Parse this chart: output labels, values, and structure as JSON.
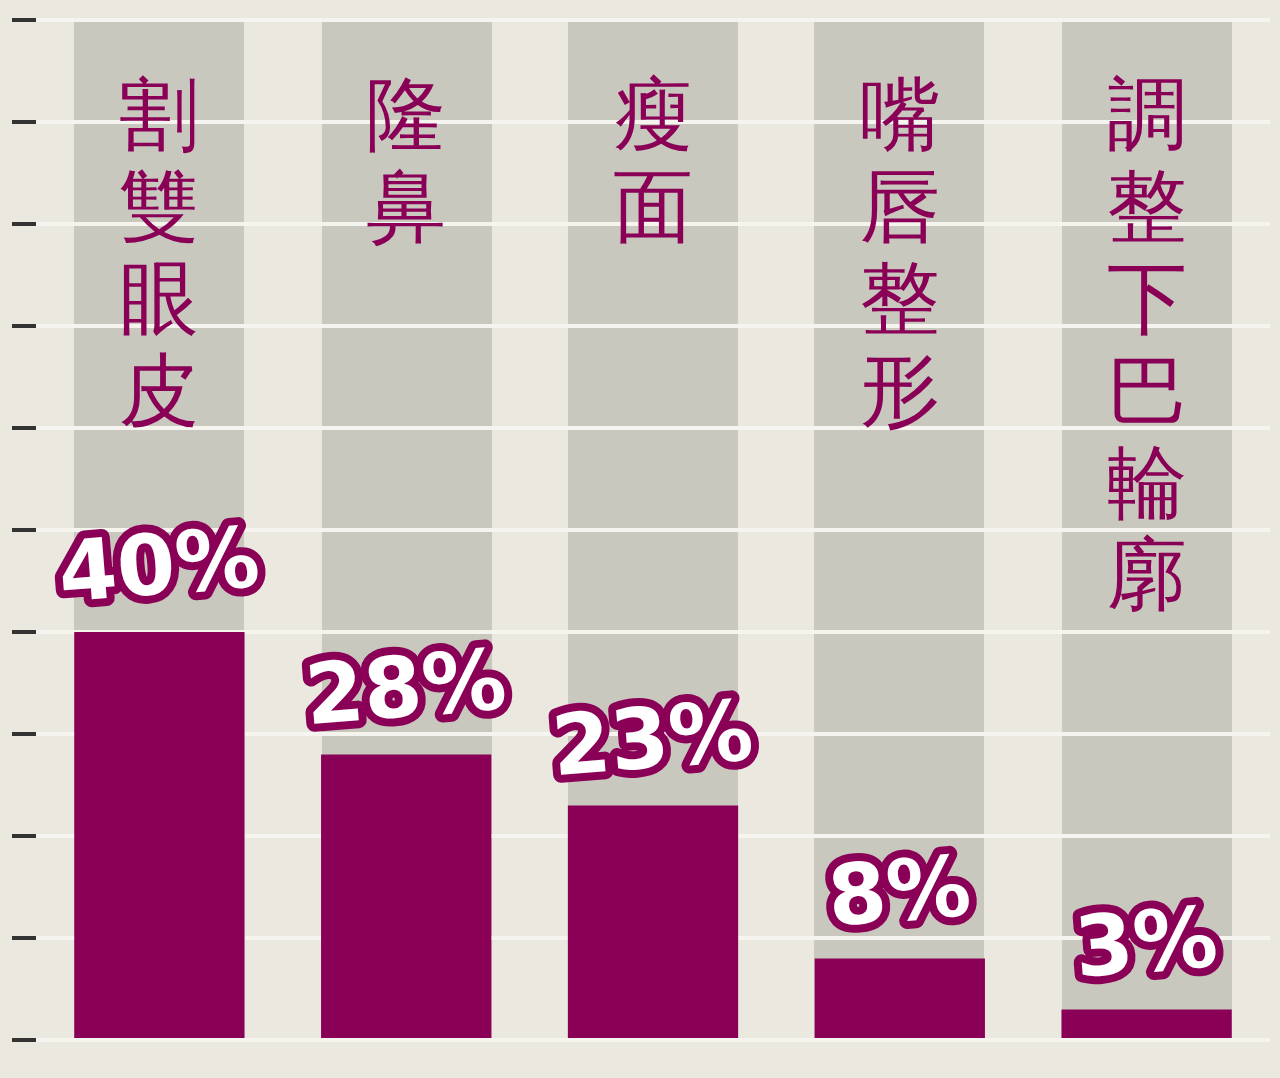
{
  "chart_data": {
    "type": "bar",
    "categories": [
      "割雙眼皮",
      "隆鼻",
      "瘦面",
      "嘴唇整形",
      "調整下巴輪廓"
    ],
    "values": [
      40,
      28,
      23,
      8,
      3
    ],
    "color": "#8a0057",
    "data_labels": true,
    "value_labels": [
      "40%",
      "28%",
      "23%",
      "8%",
      "3%"
    ],
    "ylim": [
      0,
      100
    ],
    "yticks": [
      {
        "value": 0,
        "label": null
      },
      {
        "value": 10,
        "label": null
      },
      {
        "value": 20,
        "label": null
      },
      {
        "value": 30,
        "label": null
      },
      {
        "value": 40,
        "label": null
      },
      {
        "value": 50,
        "label": null
      },
      {
        "value": 60,
        "label": null
      },
      {
        "value": 70,
        "label": null
      },
      {
        "value": 80,
        "label": null
      },
      {
        "value": 90,
        "label": null
      },
      {
        "value": 100,
        "label": null
      }
    ],
    "grid": "y",
    "tick_labels": "x",
    "legend": false
  }
}
